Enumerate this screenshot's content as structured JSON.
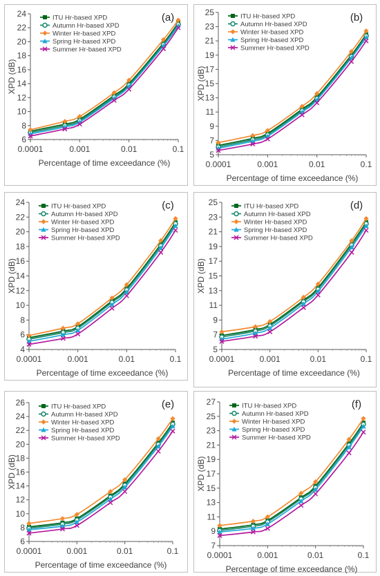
{
  "figure": {
    "series_names": [
      "ITU Hr-based XPD",
      "Autumn Hr-based XPD",
      "Winter Hr-based XPD",
      "Spring Hr-based XPD",
      "Summer Hr-based XPD"
    ],
    "series_colors": [
      "#00661a",
      "#1a8a6e",
      "#f28a30",
      "#1fa8d8",
      "#b3199e"
    ],
    "series_markers": [
      "square",
      "circle",
      "diamond",
      "triangle",
      "x"
    ],
    "x_tick_labels": [
      "0.0001",
      "0.001",
      "0.01",
      "0.1"
    ]
  },
  "chart_data": [
    {
      "panel": "(a)",
      "type": "line",
      "title": "",
      "xlabel": "Percentage of time exceedance (%)",
      "ylabel": "XPD (dB)",
      "x_scale": "log",
      "xlim": [
        0.0001,
        0.1
      ],
      "ylim": [
        6,
        24
      ],
      "y_ticks": [
        6,
        8,
        10,
        12,
        14,
        16,
        18,
        20,
        22,
        24
      ],
      "legend": "top-left",
      "grid": false,
      "x": [
        0.0001,
        0.0005,
        0.001,
        0.005,
        0.01,
        0.05,
        0.1
      ],
      "series": [
        {
          "name": "ITU Hr-based XPD",
          "values": [
            7.2,
            8.2,
            8.9,
            12.3,
            14.0,
            19.8,
            22.7
          ]
        },
        {
          "name": "Autumn Hr-based XPD",
          "values": [
            7.0,
            8.0,
            8.7,
            12.1,
            13.8,
            19.6,
            22.5
          ]
        },
        {
          "name": "Winter Hr-based XPD",
          "values": [
            7.4,
            8.6,
            9.3,
            12.7,
            14.5,
            20.3,
            23.1
          ]
        },
        {
          "name": "Spring Hr-based XPD",
          "values": [
            6.8,
            7.8,
            8.5,
            11.9,
            13.6,
            19.4,
            22.3
          ]
        },
        {
          "name": "Summer Hr-based XPD",
          "values": [
            6.5,
            7.5,
            8.2,
            11.6,
            13.2,
            19.0,
            22.0
          ]
        }
      ]
    },
    {
      "panel": "(b)",
      "type": "line",
      "title": "",
      "xlabel": "Percentage of time exceedance (%)",
      "ylabel": "XPD (dB)",
      "x_scale": "log",
      "xlim": [
        0.0001,
        0.1
      ],
      "ylim": [
        5,
        25
      ],
      "y_ticks": [
        5,
        7,
        9,
        11,
        13,
        15,
        17,
        19,
        21,
        23,
        25
      ],
      "legend": "top-left",
      "grid": false,
      "x": [
        0.0001,
        0.0005,
        0.001,
        0.005,
        0.01,
        0.05,
        0.1
      ],
      "series": [
        {
          "name": "ITU Hr-based XPD",
          "values": [
            6.3,
            7.3,
            8.0,
            11.4,
            13.1,
            19.0,
            21.9
          ]
        },
        {
          "name": "Autumn Hr-based XPD",
          "values": [
            6.1,
            7.1,
            7.8,
            11.2,
            12.9,
            18.8,
            21.7
          ]
        },
        {
          "name": "Winter Hr-based XPD",
          "values": [
            6.7,
            7.7,
            8.4,
            11.8,
            13.6,
            19.5,
            22.4
          ]
        },
        {
          "name": "Spring Hr-based XPD",
          "values": [
            5.9,
            6.9,
            7.6,
            11.0,
            12.7,
            18.6,
            21.5
          ]
        },
        {
          "name": "Summer Hr-based XPD",
          "values": [
            5.6,
            6.5,
            7.2,
            10.6,
            12.3,
            18.1,
            21.0
          ]
        }
      ]
    },
    {
      "panel": "(c)",
      "type": "line",
      "title": "",
      "xlabel": "Percentage of time exceedance (%)",
      "ylabel": "XPD (dB)",
      "x_scale": "log",
      "xlim": [
        0.0001,
        0.1
      ],
      "ylim": [
        4,
        24
      ],
      "y_ticks": [
        4,
        6,
        8,
        10,
        12,
        14,
        16,
        18,
        20,
        22,
        24
      ],
      "legend": "top-left",
      "grid": false,
      "x": [
        0.0001,
        0.0005,
        0.001,
        0.005,
        0.01,
        0.05,
        0.1
      ],
      "series": [
        {
          "name": "ITU Hr-based XPD",
          "values": [
            5.6,
            6.5,
            7.1,
            10.6,
            12.3,
            18.3,
            21.3
          ]
        },
        {
          "name": "Autumn Hr-based XPD",
          "values": [
            5.4,
            6.3,
            6.9,
            10.4,
            12.1,
            18.1,
            21.1
          ]
        },
        {
          "name": "Winter Hr-based XPD",
          "values": [
            5.9,
            6.9,
            7.5,
            11.0,
            12.8,
            18.8,
            21.8
          ]
        },
        {
          "name": "Spring Hr-based XPD",
          "values": [
            5.1,
            6.0,
            6.6,
            10.1,
            11.8,
            17.8,
            20.8
          ]
        },
        {
          "name": "Summer Hr-based XPD",
          "values": [
            4.7,
            5.5,
            6.1,
            9.6,
            11.3,
            17.2,
            20.2
          ]
        }
      ]
    },
    {
      "panel": "(d)",
      "type": "line",
      "title": "",
      "xlabel": "Percentage of time exceedance (%)",
      "ylabel": "XPD (dB)",
      "x_scale": "log",
      "xlim": [
        0.0001,
        0.1
      ],
      "ylim": [
        5,
        25
      ],
      "y_ticks": [
        5,
        7,
        9,
        11,
        13,
        15,
        17,
        19,
        21,
        23,
        25
      ],
      "legend": "top-left",
      "grid": false,
      "x": [
        0.0001,
        0.0005,
        0.001,
        0.005,
        0.01,
        0.05,
        0.1
      ],
      "series": [
        {
          "name": "ITU Hr-based XPD",
          "values": [
            6.9,
            7.7,
            8.4,
            11.7,
            13.4,
            19.4,
            22.3
          ]
        },
        {
          "name": "Autumn Hr-based XPD",
          "values": [
            6.7,
            7.5,
            8.2,
            11.5,
            13.2,
            19.2,
            22.1
          ]
        },
        {
          "name": "Winter Hr-based XPD",
          "values": [
            7.4,
            8.1,
            8.8,
            12.1,
            13.9,
            19.8,
            22.8
          ]
        },
        {
          "name": "Spring Hr-based XPD",
          "values": [
            6.4,
            7.2,
            7.9,
            11.2,
            12.9,
            18.9,
            21.8
          ]
        },
        {
          "name": "Summer Hr-based XPD",
          "values": [
            6.1,
            6.8,
            7.4,
            10.7,
            12.4,
            18.2,
            21.2
          ]
        }
      ]
    },
    {
      "panel": "(e)",
      "type": "line",
      "title": "",
      "xlabel": "Percentage of time exceedance (%)",
      "ylabel": "XPD (dB)",
      "x_scale": "log",
      "xlim": [
        0.0001,
        0.1
      ],
      "ylim": [
        6,
        26
      ],
      "y_ticks": [
        6,
        8,
        10,
        12,
        14,
        16,
        18,
        20,
        22,
        24,
        26
      ],
      "legend": "top-left",
      "grid": false,
      "x": [
        0.0001,
        0.0005,
        0.001,
        0.005,
        0.01,
        0.05,
        0.1
      ],
      "series": [
        {
          "name": "ITU Hr-based XPD",
          "values": [
            8.1,
            8.7,
            9.3,
            12.6,
            14.3,
            20.2,
            23.1
          ]
        },
        {
          "name": "Autumn Hr-based XPD",
          "values": [
            7.9,
            8.5,
            9.1,
            12.4,
            14.1,
            20.0,
            22.9
          ]
        },
        {
          "name": "Winter Hr-based XPD",
          "values": [
            8.6,
            9.3,
            9.9,
            13.2,
            14.9,
            20.8,
            23.7
          ]
        },
        {
          "name": "Spring Hr-based XPD",
          "values": [
            7.7,
            8.2,
            8.8,
            12.1,
            13.8,
            19.7,
            22.6
          ]
        },
        {
          "name": "Summer Hr-based XPD",
          "values": [
            7.2,
            7.8,
            8.3,
            11.6,
            13.2,
            19.0,
            21.9
          ]
        }
      ]
    },
    {
      "panel": "(f)",
      "type": "line",
      "title": "",
      "xlabel": "Percentage of time exceedance (%)",
      "ylabel": "XPD (dB)",
      "x_scale": "log",
      "xlim": [
        0.0001,
        0.1
      ],
      "ylim": [
        7,
        27
      ],
      "y_ticks": [
        7,
        9,
        11,
        13,
        15,
        17,
        19,
        21,
        23,
        25,
        27
      ],
      "legend": "top-left",
      "grid": false,
      "x": [
        0.0001,
        0.0005,
        0.001,
        0.005,
        0.01,
        0.05,
        0.1
      ],
      "series": [
        {
          "name": "ITU Hr-based XPD",
          "values": [
            9.3,
            9.9,
            10.5,
            13.7,
            15.3,
            21.2,
            24.1
          ]
        },
        {
          "name": "Autumn Hr-based XPD",
          "values": [
            9.1,
            9.7,
            10.3,
            13.5,
            15.1,
            21.0,
            23.9
          ]
        },
        {
          "name": "Winter Hr-based XPD",
          "values": [
            9.8,
            10.4,
            11.0,
            14.3,
            15.9,
            21.8,
            24.7
          ]
        },
        {
          "name": "Spring Hr-based XPD",
          "values": [
            8.9,
            9.4,
            10.0,
            13.2,
            14.8,
            20.7,
            23.6
          ]
        },
        {
          "name": "Summer Hr-based XPD",
          "values": [
            8.4,
            8.9,
            9.4,
            12.6,
            14.2,
            19.9,
            22.8
          ]
        }
      ]
    }
  ]
}
